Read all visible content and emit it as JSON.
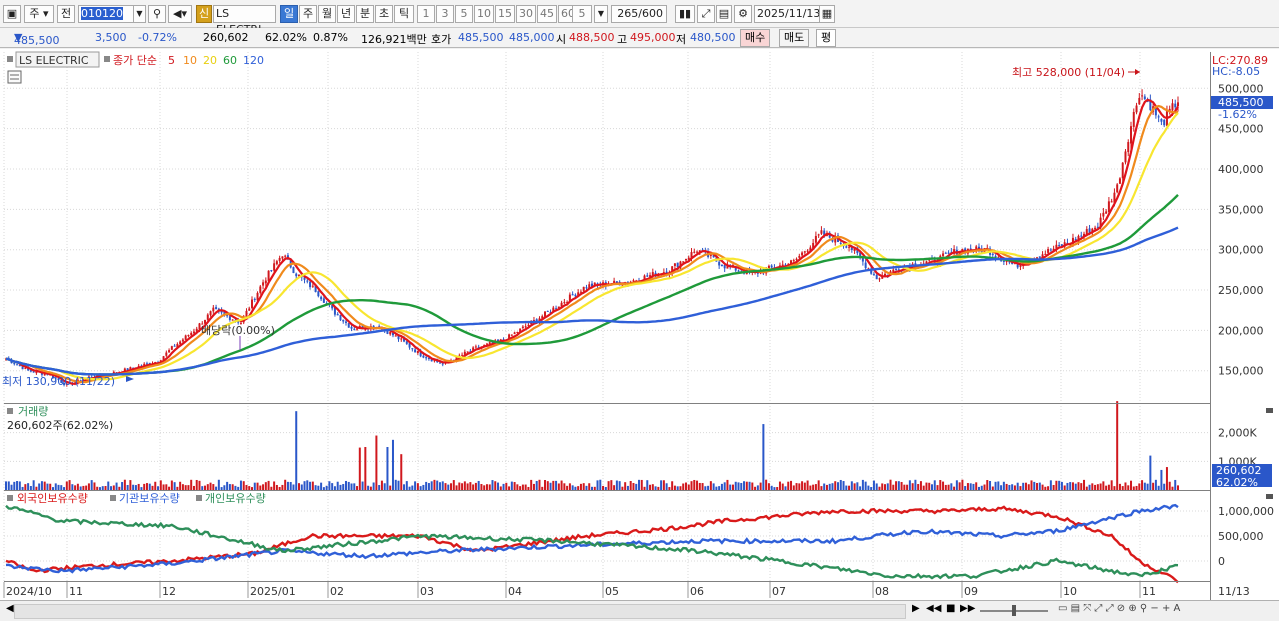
{
  "toolbar": {
    "period_label": "주",
    "prev_label": "전",
    "code": "010120",
    "stock_name": "LS ELECTRI",
    "new_label": "신",
    "tabs": [
      "일",
      "주",
      "월",
      "년",
      "분",
      "초",
      "틱"
    ],
    "nums": [
      "1",
      "3",
      "5",
      "10",
      "15",
      "30",
      "45",
      "60"
    ],
    "unit": "5",
    "count_current": "265",
    "count_max": "/600",
    "date": "2025/11/13"
  },
  "info": {
    "price": "485,500",
    "change": "3,500",
    "change_pct": "-0.72%",
    "volume": "260,602",
    "vol_ratio": "62.02%",
    "turnover_rate": "0.87%",
    "amount": "126,921백만",
    "ask_label": "호가",
    "ask1": "485,500",
    "ask2": "485,000",
    "open_label": "시",
    "open": "488,500",
    "high_label": "고",
    "high": "495,000",
    "low_label": "저",
    "low": "480,500",
    "buy_label": "매수",
    "sell_label": "매도",
    "eval_label": "평"
  },
  "colors": {
    "up": "#d0181e",
    "down": "#2a57c9",
    "ma5": "#e0141c",
    "ma10": "#f08a1c",
    "ma20": "#f8e630",
    "ma60": "#1f9a3a",
    "ma120": "#2f5fd8",
    "foreign": "#d91a1a",
    "institution": "#3060d8",
    "individual": "#2e8f5a",
    "grid": "#d8d8d8"
  },
  "price_panel": {
    "legend_name": "LS ELECTRIC",
    "legend_ma": "종가 단순",
    "ma_periods": [
      "5",
      "10",
      "20",
      "60",
      "120"
    ],
    "lc": "LC:270.89",
    "hc": "HC:-8.05",
    "last_price": "485,500",
    "last_pct": "-1.62%",
    "high_marker": "최고 528,000 (11/04)",
    "low_marker": "최저 130,900 (11/22)",
    "dividend_marker": "배당락(0.00%)",
    "yticks": [
      "500,000",
      "450,000",
      "400,000",
      "350,000",
      "300,000",
      "250,000",
      "200,000",
      "150,000"
    ]
  },
  "volume_panel": {
    "title": "거래량",
    "current": "260,602주(62.02%)",
    "yticks": [
      "2,000K",
      "1,000K"
    ],
    "last_box": "260,602",
    "last_pct": "62.02%"
  },
  "holding_panel": {
    "legend": [
      "외국인보유수량",
      "기관보유수량",
      "개인보유수량"
    ],
    "yticks": [
      "1,000,000",
      "500,000",
      "0"
    ]
  },
  "xaxis": {
    "labels": [
      "2024/10",
      "11",
      "12",
      "2025/01",
      "02",
      "03",
      "04",
      "05",
      "06",
      "07",
      "08",
      "09",
      "10",
      "11"
    ],
    "last_date": "11/13"
  },
  "chart_data": {
    "type": "candlestick",
    "price_range": [
      110000,
      545000
    ],
    "price_anchors": [
      [
        0,
        165000
      ],
      [
        8,
        150000
      ],
      [
        16,
        145000
      ],
      [
        22,
        132000
      ],
      [
        30,
        142000
      ],
      [
        40,
        148000
      ],
      [
        55,
        162000
      ],
      [
        60,
        178000
      ],
      [
        68,
        200000
      ],
      [
        75,
        225000
      ],
      [
        85,
        210000
      ],
      [
        93,
        260000
      ],
      [
        100,
        295000
      ],
      [
        105,
        270000
      ],
      [
        112,
        250000
      ],
      [
        118,
        225000
      ],
      [
        125,
        203000
      ],
      [
        135,
        205000
      ],
      [
        142,
        190000
      ],
      [
        150,
        170000
      ],
      [
        158,
        158000
      ],
      [
        170,
        178000
      ],
      [
        180,
        188000
      ],
      [
        195,
        220000
      ],
      [
        210,
        255000
      ],
      [
        225,
        260000
      ],
      [
        240,
        275000
      ],
      [
        250,
        300000
      ],
      [
        260,
        280000
      ],
      [
        270,
        270000
      ],
      [
        285,
        285000
      ],
      [
        295,
        320000
      ],
      [
        305,
        305000
      ],
      [
        315,
        265000
      ],
      [
        325,
        280000
      ],
      [
        335,
        285000
      ],
      [
        345,
        300000
      ],
      [
        355,
        300000
      ],
      [
        365,
        280000
      ],
      [
        375,
        295000
      ],
      [
        385,
        310000
      ],
      [
        395,
        330000
      ],
      [
        402,
        378000
      ],
      [
        406,
        440000
      ],
      [
        410,
        495000
      ],
      [
        414,
        480000
      ],
      [
        418,
        455000
      ],
      [
        424,
        485500
      ]
    ],
    "volume_range_k": [
      0,
      3000
    ],
    "volume_baseline_k": 200,
    "volume_spikes_k": [
      [
        105,
        2750
      ],
      [
        128,
        1480
      ],
      [
        130,
        1500
      ],
      [
        134,
        1900
      ],
      [
        138,
        1500
      ],
      [
        140,
        1750
      ],
      [
        143,
        1250
      ],
      [
        274,
        2300
      ],
      [
        402,
        3100
      ],
      [
        414,
        1200
      ],
      [
        418,
        700
      ],
      [
        420,
        800
      ]
    ],
    "holding_range": [
      -400000,
      1400000
    ],
    "foreign_anchors": [
      [
        0,
        0
      ],
      [
        10,
        -200000
      ],
      [
        30,
        -100000
      ],
      [
        60,
        0
      ],
      [
        90,
        150000
      ],
      [
        110,
        500000
      ],
      [
        150,
        500000
      ],
      [
        170,
        200000
      ],
      [
        210,
        500000
      ],
      [
        240,
        650000
      ],
      [
        260,
        800000
      ],
      [
        300,
        1000000
      ],
      [
        340,
        1000000
      ],
      [
        360,
        1050000
      ],
      [
        380,
        900000
      ],
      [
        400,
        500000
      ],
      [
        410,
        0
      ],
      [
        424,
        -400000
      ]
    ],
    "institution_anchors": [
      [
        0,
        -100000
      ],
      [
        20,
        -200000
      ],
      [
        60,
        -50000
      ],
      [
        100,
        200000
      ],
      [
        130,
        100000
      ],
      [
        160,
        200000
      ],
      [
        200,
        300000
      ],
      [
        250,
        400000
      ],
      [
        300,
        400000
      ],
      [
        330,
        600000
      ],
      [
        360,
        500000
      ],
      [
        380,
        600000
      ],
      [
        410,
        1000000
      ],
      [
        424,
        1100000
      ]
    ],
    "individual_anchors": [
      [
        0,
        1100000
      ],
      [
        20,
        800000
      ],
      [
        60,
        700000
      ],
      [
        100,
        200000
      ],
      [
        150,
        500000
      ],
      [
        200,
        400000
      ],
      [
        250,
        200000
      ],
      [
        280,
        0
      ],
      [
        320,
        -300000
      ],
      [
        350,
        -300000
      ],
      [
        380,
        0
      ],
      [
        410,
        -300000
      ],
      [
        424,
        -100000
      ]
    ],
    "bars": 425
  }
}
